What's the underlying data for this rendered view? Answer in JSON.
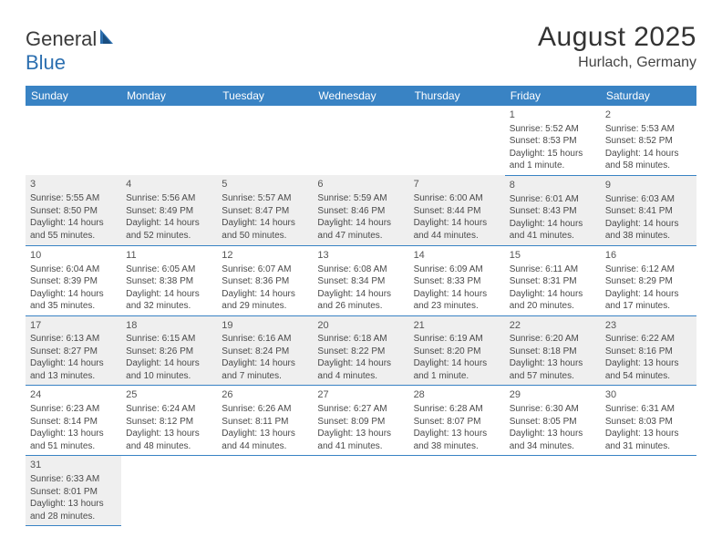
{
  "brand": {
    "part1": "General",
    "part2": "Blue"
  },
  "title": "August 2025",
  "location": "Hurlach, Germany",
  "colors": {
    "header_bg": "#3983c4",
    "header_fg": "#ffffff",
    "shaded_row": "#efefef",
    "border": "#3983c4",
    "text": "#4a4a4a"
  },
  "day_headers": [
    "Sunday",
    "Monday",
    "Tuesday",
    "Wednesday",
    "Thursday",
    "Friday",
    "Saturday"
  ],
  "weeks": [
    {
      "shaded": false,
      "cells": [
        null,
        null,
        null,
        null,
        null,
        {
          "n": "1",
          "sr": "5:52 AM",
          "ss": "8:53 PM",
          "dl": "15 hours and 1 minute."
        },
        {
          "n": "2",
          "sr": "5:53 AM",
          "ss": "8:52 PM",
          "dl": "14 hours and 58 minutes."
        }
      ]
    },
    {
      "shaded": true,
      "cells": [
        {
          "n": "3",
          "sr": "5:55 AM",
          "ss": "8:50 PM",
          "dl": "14 hours and 55 minutes."
        },
        {
          "n": "4",
          "sr": "5:56 AM",
          "ss": "8:49 PM",
          "dl": "14 hours and 52 minutes."
        },
        {
          "n": "5",
          "sr": "5:57 AM",
          "ss": "8:47 PM",
          "dl": "14 hours and 50 minutes."
        },
        {
          "n": "6",
          "sr": "5:59 AM",
          "ss": "8:46 PM",
          "dl": "14 hours and 47 minutes."
        },
        {
          "n": "7",
          "sr": "6:00 AM",
          "ss": "8:44 PM",
          "dl": "14 hours and 44 minutes."
        },
        {
          "n": "8",
          "sr": "6:01 AM",
          "ss": "8:43 PM",
          "dl": "14 hours and 41 minutes."
        },
        {
          "n": "9",
          "sr": "6:03 AM",
          "ss": "8:41 PM",
          "dl": "14 hours and 38 minutes."
        }
      ]
    },
    {
      "shaded": false,
      "cells": [
        {
          "n": "10",
          "sr": "6:04 AM",
          "ss": "8:39 PM",
          "dl": "14 hours and 35 minutes."
        },
        {
          "n": "11",
          "sr": "6:05 AM",
          "ss": "8:38 PM",
          "dl": "14 hours and 32 minutes."
        },
        {
          "n": "12",
          "sr": "6:07 AM",
          "ss": "8:36 PM",
          "dl": "14 hours and 29 minutes."
        },
        {
          "n": "13",
          "sr": "6:08 AM",
          "ss": "8:34 PM",
          "dl": "14 hours and 26 minutes."
        },
        {
          "n": "14",
          "sr": "6:09 AM",
          "ss": "8:33 PM",
          "dl": "14 hours and 23 minutes."
        },
        {
          "n": "15",
          "sr": "6:11 AM",
          "ss": "8:31 PM",
          "dl": "14 hours and 20 minutes."
        },
        {
          "n": "16",
          "sr": "6:12 AM",
          "ss": "8:29 PM",
          "dl": "14 hours and 17 minutes."
        }
      ]
    },
    {
      "shaded": true,
      "cells": [
        {
          "n": "17",
          "sr": "6:13 AM",
          "ss": "8:27 PM",
          "dl": "14 hours and 13 minutes."
        },
        {
          "n": "18",
          "sr": "6:15 AM",
          "ss": "8:26 PM",
          "dl": "14 hours and 10 minutes."
        },
        {
          "n": "19",
          "sr": "6:16 AM",
          "ss": "8:24 PM",
          "dl": "14 hours and 7 minutes."
        },
        {
          "n": "20",
          "sr": "6:18 AM",
          "ss": "8:22 PM",
          "dl": "14 hours and 4 minutes."
        },
        {
          "n": "21",
          "sr": "6:19 AM",
          "ss": "8:20 PM",
          "dl": "14 hours and 1 minute."
        },
        {
          "n": "22",
          "sr": "6:20 AM",
          "ss": "8:18 PM",
          "dl": "13 hours and 57 minutes."
        },
        {
          "n": "23",
          "sr": "6:22 AM",
          "ss": "8:16 PM",
          "dl": "13 hours and 54 minutes."
        }
      ]
    },
    {
      "shaded": false,
      "cells": [
        {
          "n": "24",
          "sr": "6:23 AM",
          "ss": "8:14 PM",
          "dl": "13 hours and 51 minutes."
        },
        {
          "n": "25",
          "sr": "6:24 AM",
          "ss": "8:12 PM",
          "dl": "13 hours and 48 minutes."
        },
        {
          "n": "26",
          "sr": "6:26 AM",
          "ss": "8:11 PM",
          "dl": "13 hours and 44 minutes."
        },
        {
          "n": "27",
          "sr": "6:27 AM",
          "ss": "8:09 PM",
          "dl": "13 hours and 41 minutes."
        },
        {
          "n": "28",
          "sr": "6:28 AM",
          "ss": "8:07 PM",
          "dl": "13 hours and 38 minutes."
        },
        {
          "n": "29",
          "sr": "6:30 AM",
          "ss": "8:05 PM",
          "dl": "13 hours and 34 minutes."
        },
        {
          "n": "30",
          "sr": "6:31 AM",
          "ss": "8:03 PM",
          "dl": "13 hours and 31 minutes."
        }
      ]
    },
    {
      "shaded": true,
      "cells": [
        {
          "n": "31",
          "sr": "6:33 AM",
          "ss": "8:01 PM",
          "dl": "13 hours and 28 minutes."
        },
        null,
        null,
        null,
        null,
        null,
        null
      ]
    }
  ],
  "labels": {
    "sunrise": "Sunrise:",
    "sunset": "Sunset:",
    "daylight": "Daylight:"
  }
}
